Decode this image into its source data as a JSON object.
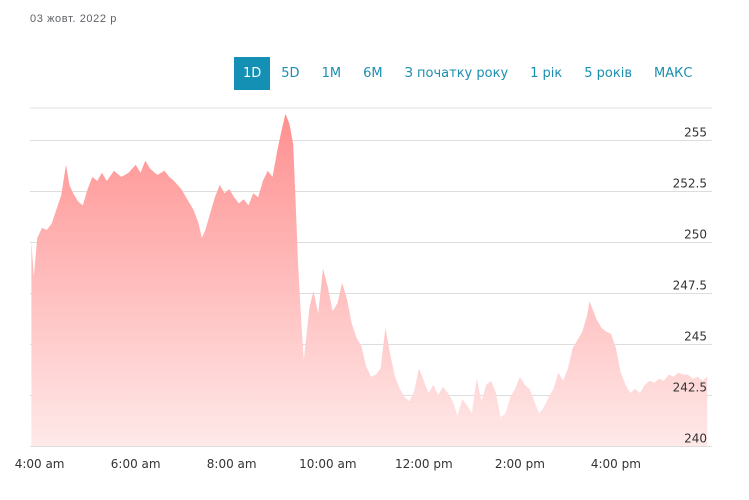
{
  "header": {
    "date": "03 жовт. 2022 р"
  },
  "ranges": [
    {
      "label": "1D",
      "active": true
    },
    {
      "label": "5D",
      "active": false
    },
    {
      "label": "1M",
      "active": false
    },
    {
      "label": "6M",
      "active": false
    },
    {
      "label": "З початку року",
      "active": false
    },
    {
      "label": "1 рік",
      "active": false
    },
    {
      "label": "5 років",
      "active": false
    },
    {
      "label": "МАКС",
      "active": false
    }
  ],
  "colors": {
    "accent": "#1490b5",
    "area_top": "#ff8f8f",
    "area_bottom": "#ffe9e9",
    "grid": "#dddddd"
  },
  "chart_data": {
    "type": "area",
    "title": "",
    "xlabel": "",
    "ylabel": "",
    "ylim": [
      240,
      255.5
    ],
    "yticks": [
      240,
      242.5,
      245,
      247.5,
      250,
      252.5,
      255
    ],
    "ytick_labels": [
      "240",
      "242.5",
      "245",
      "247.5",
      "250",
      "252.5",
      "255"
    ],
    "xlim_hours": [
      3.8,
      18.0
    ],
    "xticks": [
      {
        "hour": 4,
        "label": "4:00 am"
      },
      {
        "hour": 6,
        "label": "6:00 am"
      },
      {
        "hour": 8,
        "label": "8:00 am"
      },
      {
        "hour": 10,
        "label": "10:00 am"
      },
      {
        "hour": 12,
        "label": "12:00 pm"
      },
      {
        "hour": 14,
        "label": "2:00 pm"
      },
      {
        "hour": 16,
        "label": "4:00 pm"
      }
    ],
    "grid": true,
    "points": [
      [
        3.83,
        250.0
      ],
      [
        3.88,
        248.3
      ],
      [
        3.95,
        250.2
      ],
      [
        4.05,
        250.7
      ],
      [
        4.15,
        250.6
      ],
      [
        4.25,
        250.9
      ],
      [
        4.35,
        251.6
      ],
      [
        4.45,
        252.3
      ],
      [
        4.55,
        253.8
      ],
      [
        4.62,
        252.8
      ],
      [
        4.7,
        252.4
      ],
      [
        4.8,
        252.0
      ],
      [
        4.9,
        251.8
      ],
      [
        5.0,
        252.6
      ],
      [
        5.1,
        253.2
      ],
      [
        5.2,
        253.0
      ],
      [
        5.3,
        253.4
      ],
      [
        5.4,
        253.0
      ],
      [
        5.55,
        253.5
      ],
      [
        5.7,
        253.2
      ],
      [
        5.85,
        253.4
      ],
      [
        6.0,
        253.8
      ],
      [
        6.1,
        253.4
      ],
      [
        6.2,
        254.0
      ],
      [
        6.3,
        253.6
      ],
      [
        6.45,
        253.3
      ],
      [
        6.6,
        253.5
      ],
      [
        6.7,
        253.2
      ],
      [
        6.8,
        253.0
      ],
      [
        6.95,
        252.6
      ],
      [
        7.1,
        252.0
      ],
      [
        7.2,
        251.6
      ],
      [
        7.3,
        251.0
      ],
      [
        7.38,
        250.2
      ],
      [
        7.45,
        250.6
      ],
      [
        7.55,
        251.4
      ],
      [
        7.65,
        252.2
      ],
      [
        7.75,
        252.8
      ],
      [
        7.85,
        252.4
      ],
      [
        7.95,
        252.6
      ],
      [
        8.05,
        252.2
      ],
      [
        8.15,
        251.9
      ],
      [
        8.25,
        252.1
      ],
      [
        8.35,
        251.8
      ],
      [
        8.45,
        252.4
      ],
      [
        8.55,
        252.2
      ],
      [
        8.65,
        253.0
      ],
      [
        8.75,
        253.5
      ],
      [
        8.85,
        253.2
      ],
      [
        8.95,
        254.5
      ],
      [
        9.05,
        255.6
      ],
      [
        9.12,
        256.3
      ],
      [
        9.2,
        255.8
      ],
      [
        9.28,
        254.8
      ],
      [
        9.33,
        252.0
      ],
      [
        9.38,
        249.0
      ],
      [
        9.45,
        246.0
      ],
      [
        9.5,
        244.2
      ],
      [
        9.56,
        245.5
      ],
      [
        9.62,
        246.8
      ],
      [
        9.7,
        247.6
      ],
      [
        9.8,
        246.5
      ],
      [
        9.9,
        248.7
      ],
      [
        10.0,
        247.8
      ],
      [
        10.1,
        246.6
      ],
      [
        10.2,
        247.0
      ],
      [
        10.3,
        248.0
      ],
      [
        10.4,
        247.2
      ],
      [
        10.5,
        246.0
      ],
      [
        10.6,
        245.3
      ],
      [
        10.7,
        244.9
      ],
      [
        10.8,
        243.9
      ],
      [
        10.9,
        243.4
      ],
      [
        11.0,
        243.5
      ],
      [
        11.1,
        243.8
      ],
      [
        11.2,
        245.8
      ],
      [
        11.3,
        244.5
      ],
      [
        11.4,
        243.4
      ],
      [
        11.5,
        242.8
      ],
      [
        11.6,
        242.4
      ],
      [
        11.7,
        242.2
      ],
      [
        11.8,
        242.7
      ],
      [
        11.9,
        243.8
      ],
      [
        12.0,
        243.2
      ],
      [
        12.1,
        242.6
      ],
      [
        12.2,
        243.0
      ],
      [
        12.3,
        242.5
      ],
      [
        12.4,
        242.9
      ],
      [
        12.5,
        242.6
      ],
      [
        12.6,
        242.2
      ],
      [
        12.7,
        241.5
      ],
      [
        12.8,
        242.3
      ],
      [
        12.9,
        242.0
      ],
      [
        13.0,
        241.6
      ],
      [
        13.1,
        243.3
      ],
      [
        13.2,
        242.2
      ],
      [
        13.3,
        243.0
      ],
      [
        13.4,
        243.2
      ],
      [
        13.5,
        242.6
      ],
      [
        13.6,
        241.4
      ],
      [
        13.7,
        241.6
      ],
      [
        13.8,
        242.4
      ],
      [
        13.9,
        242.8
      ],
      [
        14.0,
        243.4
      ],
      [
        14.1,
        243.0
      ],
      [
        14.2,
        242.8
      ],
      [
        14.3,
        242.2
      ],
      [
        14.4,
        241.6
      ],
      [
        14.5,
        241.9
      ],
      [
        14.6,
        242.4
      ],
      [
        14.7,
        242.8
      ],
      [
        14.8,
        243.6
      ],
      [
        14.9,
        243.2
      ],
      [
        15.0,
        243.8
      ],
      [
        15.1,
        244.8
      ],
      [
        15.2,
        245.2
      ],
      [
        15.3,
        245.6
      ],
      [
        15.4,
        246.4
      ],
      [
        15.45,
        247.1
      ],
      [
        15.5,
        246.8
      ],
      [
        15.6,
        246.2
      ],
      [
        15.7,
        245.8
      ],
      [
        15.8,
        245.6
      ],
      [
        15.9,
        245.5
      ],
      [
        16.0,
        244.8
      ],
      [
        16.1,
        243.6
      ],
      [
        16.2,
        243.0
      ],
      [
        16.3,
        242.6
      ],
      [
        16.4,
        242.8
      ],
      [
        16.5,
        242.6
      ],
      [
        16.6,
        243.0
      ],
      [
        16.7,
        243.2
      ],
      [
        16.8,
        243.1
      ],
      [
        16.9,
        243.3
      ],
      [
        17.0,
        243.2
      ],
      [
        17.1,
        243.5
      ],
      [
        17.2,
        243.4
      ],
      [
        17.3,
        243.6
      ],
      [
        17.4,
        243.5
      ],
      [
        17.5,
        243.5
      ],
      [
        17.6,
        243.3
      ],
      [
        17.7,
        243.4
      ],
      [
        17.8,
        243.2
      ],
      [
        17.9,
        243.4
      ]
    ]
  }
}
